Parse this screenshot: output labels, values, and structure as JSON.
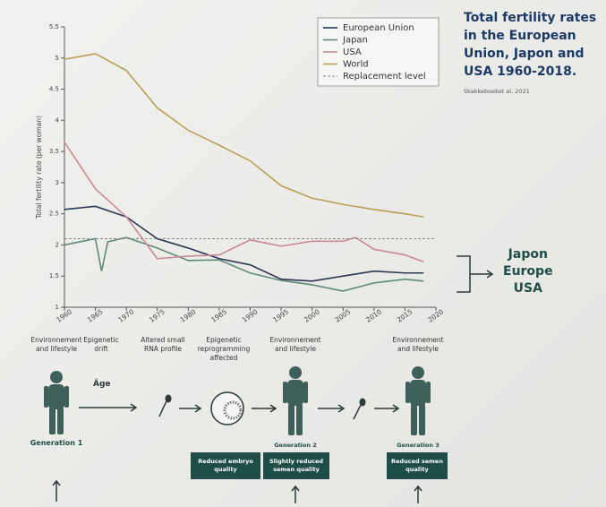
{
  "chart_data": {
    "type": "line",
    "title": "Total fertility rates in the European Union, Japon and USA 1960-2018.",
    "source": "Skakkeboeket al, 2021",
    "y_label": "Total fertility rate (per woman)",
    "xlim": [
      1960,
      2020
    ],
    "xticks": [
      1960,
      1965,
      1970,
      1975,
      1980,
      1985,
      1990,
      1995,
      2000,
      2005,
      2010,
      2015,
      2020
    ],
    "ylim": [
      1,
      5.5
    ],
    "yticks": [
      1,
      1.5,
      2,
      2.5,
      3,
      3.5,
      4,
      4.5,
      5,
      5.5
    ],
    "legend": "top-right",
    "series": [
      {
        "name": "European Union",
        "color": "#2c3553",
        "x": [
          1960,
          1965,
          1970,
          1975,
          1980,
          1985,
          1990,
          1995,
          2000,
          2005,
          2010,
          2015,
          2018
        ],
        "values": [
          2.57,
          2.62,
          2.45,
          2.1,
          1.95,
          1.78,
          1.68,
          1.45,
          1.42,
          1.5,
          1.58,
          1.55,
          1.55
        ]
      },
      {
        "name": "Japan",
        "color": "#5e8a78",
        "x": [
          1960,
          1965,
          1966,
          1967,
          1970,
          1975,
          1980,
          1985,
          1990,
          1995,
          2000,
          2005,
          2010,
          2015,
          2018
        ],
        "values": [
          2.0,
          2.1,
          1.58,
          2.05,
          2.12,
          1.95,
          1.75,
          1.76,
          1.55,
          1.43,
          1.36,
          1.26,
          1.39,
          1.45,
          1.42
        ]
      },
      {
        "name": "USA",
        "color": "#c98a95",
        "x": [
          1960,
          1965,
          1970,
          1975,
          1980,
          1985,
          1990,
          1995,
          2000,
          2005,
          2007,
          2010,
          2015,
          2018
        ],
        "values": [
          3.65,
          2.9,
          2.45,
          1.78,
          1.82,
          1.84,
          2.08,
          1.98,
          2.06,
          2.06,
          2.12,
          1.93,
          1.84,
          1.73
        ]
      },
      {
        "name": "World",
        "color": "#b7a055",
        "x": [
          1960,
          1965,
          1970,
          1975,
          1980,
          1985,
          1990,
          1995,
          2000,
          2005,
          2010,
          2015,
          2018
        ],
        "values": [
          4.98,
          5.07,
          4.8,
          4.2,
          3.84,
          3.6,
          3.35,
          2.95,
          2.75,
          2.65,
          2.57,
          2.5,
          2.45
        ]
      },
      {
        "name": "Replacement level",
        "color": "#888888",
        "dashed": true,
        "x": [
          1960,
          2020
        ],
        "values": [
          2.1,
          2.1
        ]
      }
    ],
    "annotations": [
      "Japon",
      "Europe",
      "USA"
    ]
  },
  "diagram": {
    "steps": [
      "Environnement and lifestyle",
      "Epigenetic drift",
      "Altered small RNA profile",
      "Epigenetic reprogramming affected",
      "Environnement and lifestyle",
      "Environnement and lifestyle"
    ],
    "age": "Âge",
    "generations": [
      "Generation 1",
      "Generation 2",
      "Generation 3"
    ],
    "effects": [
      "Reduced embryo quality",
      "Slightly reduced semen quality",
      "Reduced semen quality"
    ]
  }
}
